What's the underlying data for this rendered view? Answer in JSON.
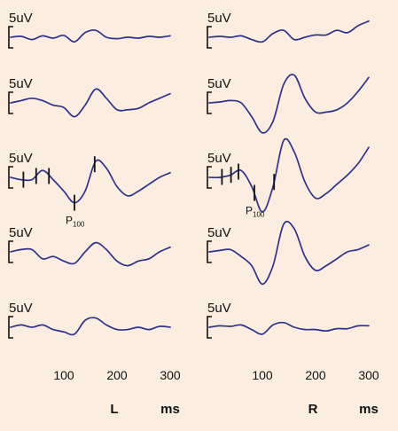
{
  "colors": {
    "background": "#fbeee0",
    "trace": "#2f2f8f",
    "text": "#111111"
  },
  "scale_label": "5uV",
  "marker_label": {
    "letter": "P",
    "subscript": "100"
  },
  "chart_data": [
    {
      "type": "line",
      "panel": "L",
      "xlabel": "ms",
      "xticks": [
        100,
        200,
        300
      ],
      "xlim": [
        0,
        300
      ],
      "series": [
        {
          "label": "5uV",
          "x": [
            0,
            20,
            40,
            60,
            80,
            100,
            120,
            140,
            160,
            180,
            200,
            220,
            240,
            260,
            280,
            300
          ],
          "y": [
            0.0,
            0.2,
            -0.5,
            0.3,
            -0.2,
            0.4,
            -1.0,
            1.0,
            1.5,
            0.0,
            -0.3,
            0.0,
            -0.2,
            0.2,
            0.0,
            0.3
          ]
        },
        {
          "label": "5uV",
          "x": [
            0,
            20,
            40,
            60,
            80,
            100,
            120,
            140,
            160,
            180,
            200,
            220,
            240,
            260,
            280,
            300
          ],
          "y": [
            0.0,
            0.5,
            1.0,
            0.5,
            -0.5,
            -1.0,
            -3.0,
            -0.5,
            3.0,
            1.0,
            -1.5,
            -1.5,
            -1.2,
            0.0,
            1.0,
            2.0
          ]
        },
        {
          "label": "5uV",
          "x": [
            0,
            20,
            40,
            60,
            80,
            100,
            120,
            140,
            160,
            180,
            200,
            220,
            240,
            260,
            280,
            300
          ],
          "y": [
            0.0,
            -0.5,
            -0.5,
            1.5,
            -0.5,
            -3.0,
            -5.5,
            -3.0,
            3.5,
            2.0,
            -2.0,
            -4.0,
            -3.0,
            -1.5,
            0.0,
            1.0
          ],
          "markers": [
            24,
            48,
            72,
            120,
            158
          ],
          "peak_label_at": 120
        },
        {
          "label": "5uV",
          "x": [
            0,
            20,
            40,
            60,
            80,
            100,
            120,
            140,
            160,
            180,
            200,
            220,
            240,
            260,
            280,
            300
          ],
          "y": [
            0.0,
            0.5,
            0.5,
            -1.5,
            -1.0,
            -2.0,
            -2.5,
            0.0,
            2.0,
            0.5,
            -2.0,
            -3.0,
            -2.0,
            -1.5,
            0.0,
            1.0
          ]
        },
        {
          "label": "5uV",
          "x": [
            0,
            20,
            40,
            60,
            80,
            100,
            120,
            140,
            160,
            180,
            200,
            220,
            240,
            260,
            280,
            300
          ],
          "y": [
            0.0,
            0.5,
            0.0,
            0.5,
            -0.5,
            -1.0,
            -1.5,
            1.5,
            2.0,
            0.5,
            -0.5,
            -0.5,
            0.0,
            -0.5,
            0.2,
            0.0
          ]
        }
      ]
    },
    {
      "type": "line",
      "panel": "R",
      "xlabel": "ms",
      "xticks": [
        100,
        200,
        300
      ],
      "xlim": [
        0,
        300
      ],
      "series": [
        {
          "label": "5uV",
          "x": [
            0,
            20,
            40,
            60,
            80,
            100,
            120,
            140,
            160,
            180,
            200,
            220,
            240,
            260,
            280,
            300
          ],
          "y": [
            0.0,
            0.2,
            0.0,
            0.3,
            -0.5,
            -1.0,
            0.8,
            1.5,
            -0.5,
            0.0,
            0.5,
            0.5,
            1.5,
            1.0,
            2.5,
            3.5
          ]
        },
        {
          "label": "5uV",
          "x": [
            0,
            20,
            40,
            60,
            80,
            100,
            120,
            140,
            160,
            180,
            200,
            220,
            240,
            260,
            280,
            300
          ],
          "y": [
            0.0,
            0.2,
            0.5,
            0.0,
            -3.0,
            -6.5,
            -4.0,
            4.0,
            6.0,
            1.0,
            -2.0,
            -2.0,
            -1.5,
            0.0,
            2.5,
            5.5
          ]
        },
        {
          "label": "5uV",
          "x": [
            0,
            20,
            40,
            60,
            80,
            100,
            120,
            140,
            160,
            180,
            200,
            220,
            240,
            260,
            280,
            300
          ],
          "y": [
            0.0,
            0.0,
            0.5,
            1.5,
            -2.0,
            -7.5,
            -2.0,
            8.0,
            5.5,
            -1.0,
            -4.5,
            -3.5,
            -1.5,
            0.5,
            3.0,
            6.5
          ],
          "markers": [
            24,
            41,
            55,
            85,
            122
          ],
          "peak_label_at": 85
        },
        {
          "label": "5uV",
          "x": [
            0,
            20,
            40,
            60,
            80,
            100,
            120,
            140,
            160,
            180,
            200,
            220,
            240,
            260,
            280,
            300
          ],
          "y": [
            0.0,
            0.3,
            0.5,
            -1.0,
            -3.0,
            -7.0,
            -3.0,
            6.0,
            5.0,
            -1.0,
            -4.0,
            -3.0,
            -1.5,
            0.0,
            0.5,
            1.5
          ]
        },
        {
          "label": "5uV",
          "x": [
            0,
            20,
            40,
            60,
            80,
            100,
            120,
            140,
            160,
            180,
            200,
            220,
            240,
            260,
            280,
            300
          ],
          "y": [
            0.0,
            0.3,
            0.2,
            0.5,
            -0.5,
            -1.5,
            0.5,
            1.0,
            0.0,
            -0.5,
            -0.5,
            -0.8,
            -0.3,
            -0.3,
            0.3,
            0.3
          ]
        }
      ]
    }
  ]
}
